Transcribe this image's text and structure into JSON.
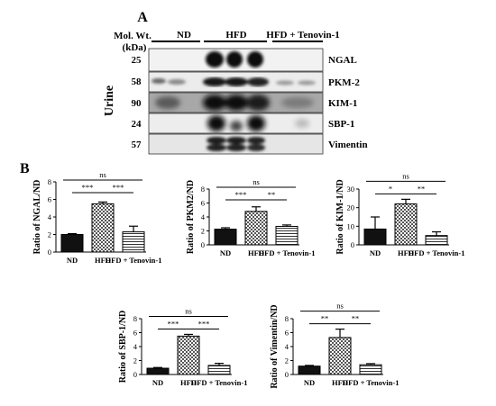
{
  "panel_a": {
    "label": "A",
    "mol_wt_label": "Mol. Wt.",
    "kda_label": "(kDa)",
    "side_label": "Urine",
    "groups": [
      "ND",
      "HFD",
      "HFD + Tenovin-1"
    ],
    "rows": [
      {
        "mw": "25",
        "name": "NGAL"
      },
      {
        "mw": "58",
        "name": "PKM-2"
      },
      {
        "mw": "90",
        "name": "KIM-1"
      },
      {
        "mw": "24",
        "name": "SBP-1"
      },
      {
        "mw": "57",
        "name": "Vimentin"
      }
    ]
  },
  "panel_b": {
    "label": "B"
  },
  "colors": {
    "nd": "#111111",
    "hfd": "#ffffff",
    "tenovin": "#ffffff",
    "axis": "#000000"
  },
  "chart_data": [
    {
      "type": "bar",
      "categories": [
        "ND",
        "HFD",
        "HFD + Tenovin-1"
      ],
      "series": [
        {
          "values": [
            2.0,
            5.5,
            2.3
          ],
          "errors": [
            0.1,
            0.2,
            0.65
          ]
        }
      ],
      "ylabel": "Ratio of NGAL/ND",
      "yticks": [
        "0",
        "2",
        "4",
        "6",
        "8"
      ],
      "ylim": [
        0,
        8
      ],
      "significance": [
        {
          "from": 0,
          "to": 1,
          "label": "***"
        },
        {
          "from": 1,
          "to": 2,
          "label": "***"
        },
        {
          "from": 0,
          "to": 2,
          "label": "ns"
        }
      ]
    },
    {
      "type": "bar",
      "categories": [
        "ND",
        "HFD",
        "HFD + Tenovin-1"
      ],
      "series": [
        {
          "values": [
            2.25,
            4.8,
            2.65
          ],
          "errors": [
            0.2,
            0.65,
            0.2
          ]
        }
      ],
      "ylabel": "Ratio of PKM2/ND",
      "yticks": [
        "0",
        "2",
        "4",
        "6",
        "8"
      ],
      "ylim": [
        0,
        8
      ],
      "significance": [
        {
          "from": 0,
          "to": 1,
          "label": "***"
        },
        {
          "from": 1,
          "to": 2,
          "label": "**"
        },
        {
          "from": 0,
          "to": 2,
          "label": "ns"
        }
      ]
    },
    {
      "type": "bar",
      "categories": [
        "ND",
        "HFD",
        "HFD + Tenovin-1"
      ],
      "series": [
        {
          "values": [
            8.5,
            22.0,
            5.0
          ],
          "errors": [
            6.5,
            2.5,
            2.0
          ]
        }
      ],
      "ylabel": "Ratio of KIM-1/ND",
      "yticks": [
        "0",
        "10",
        "20",
        "30"
      ],
      "ylim": [
        0,
        30
      ],
      "significance": [
        {
          "from": 0,
          "to": 1,
          "label": "*"
        },
        {
          "from": 1,
          "to": 2,
          "label": "**"
        },
        {
          "from": 0,
          "to": 2,
          "label": "ns"
        }
      ]
    },
    {
      "type": "bar",
      "categories": [
        "ND",
        "HFD",
        "HFD + Tenovin-1"
      ],
      "series": [
        {
          "values": [
            0.9,
            5.5,
            1.3
          ],
          "errors": [
            0.1,
            0.25,
            0.3
          ]
        }
      ],
      "ylabel": "Ratio of SBP-1/ND",
      "yticks": [
        "0",
        "2",
        "4",
        "6",
        "8"
      ],
      "ylim": [
        0,
        8
      ],
      "significance": [
        {
          "from": 0,
          "to": 1,
          "label": "***"
        },
        {
          "from": 1,
          "to": 2,
          "label": "***"
        },
        {
          "from": 0,
          "to": 2,
          "label": "ns"
        }
      ]
    },
    {
      "type": "bar",
      "categories": [
        "ND",
        "HFD",
        "HFD + Tenovin-1"
      ],
      "series": [
        {
          "values": [
            1.2,
            5.3,
            1.4
          ],
          "errors": [
            0.1,
            1.2,
            0.15
          ]
        }
      ],
      "ylabel": "Ratio of Vimentin/ND",
      "yticks": [
        "0",
        "2",
        "4",
        "6",
        "8"
      ],
      "ylim": [
        0,
        8
      ],
      "significance": [
        {
          "from": 0,
          "to": 1,
          "label": "**"
        },
        {
          "from": 1,
          "to": 2,
          "label": "**"
        },
        {
          "from": 0,
          "to": 2,
          "label": "ns"
        }
      ]
    }
  ]
}
